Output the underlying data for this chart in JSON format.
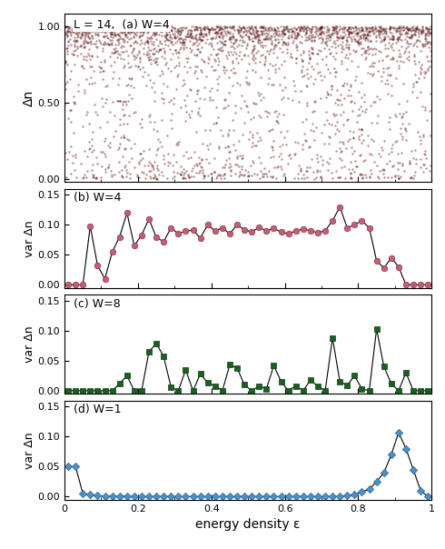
{
  "title_a": "L = 14,  (a) W=4",
  "label_b": "(b) W=4",
  "label_c": "(c) W=8",
  "label_d": "(d) W=1",
  "xlabel": "energy density ε",
  "ylabel_a": "Δn",
  "ylabel_bcd": "var Δn",
  "scatter_color": "#5a1010",
  "scatter_alpha": 0.45,
  "scatter_size": 3,
  "marker_color_b": "#c06070",
  "edge_color_b": "#903050",
  "marker_color_c": "#1a6020",
  "edge_color_c": "#0a3a10",
  "marker_color_d": "#5090c0",
  "edge_color_d": "#2060a0",
  "ylim_a": [
    -0.02,
    1.08
  ],
  "ylim_bcd": [
    -0.005,
    0.16
  ],
  "yticks_a": [
    0.0,
    0.5,
    1.0
  ],
  "yticks_bcd": [
    0.0,
    0.05,
    0.1,
    0.15
  ],
  "b_x": [
    0.01,
    0.03,
    0.05,
    0.07,
    0.09,
    0.11,
    0.13,
    0.15,
    0.17,
    0.19,
    0.21,
    0.23,
    0.25,
    0.27,
    0.29,
    0.31,
    0.33,
    0.35,
    0.37,
    0.39,
    0.41,
    0.43,
    0.45,
    0.47,
    0.49,
    0.51,
    0.53,
    0.55,
    0.57,
    0.59,
    0.61,
    0.63,
    0.65,
    0.67,
    0.69,
    0.71,
    0.73,
    0.75,
    0.77,
    0.79,
    0.81,
    0.83,
    0.85,
    0.87,
    0.89,
    0.91,
    0.93,
    0.95,
    0.97,
    0.99
  ],
  "b_y": [
    0.0,
    0.0,
    0.0,
    0.098,
    0.032,
    0.01,
    0.055,
    0.08,
    0.12,
    0.065,
    0.083,
    0.11,
    0.079,
    0.072,
    0.095,
    0.085,
    0.09,
    0.091,
    0.078,
    0.1,
    0.09,
    0.095,
    0.085,
    0.1,
    0.092,
    0.088,
    0.096,
    0.09,
    0.094,
    0.088,
    0.085,
    0.09,
    0.093,
    0.09,
    0.087,
    0.09,
    0.107,
    0.13,
    0.095,
    0.1,
    0.107,
    0.095,
    0.04,
    0.028,
    0.045,
    0.03,
    0.0,
    0.0,
    0.0,
    0.0
  ],
  "c_x": [
    0.01,
    0.03,
    0.05,
    0.07,
    0.09,
    0.11,
    0.13,
    0.15,
    0.17,
    0.19,
    0.21,
    0.23,
    0.25,
    0.27,
    0.29,
    0.31,
    0.33,
    0.35,
    0.37,
    0.39,
    0.41,
    0.43,
    0.45,
    0.47,
    0.49,
    0.51,
    0.53,
    0.55,
    0.57,
    0.59,
    0.61,
    0.63,
    0.65,
    0.67,
    0.69,
    0.71,
    0.73,
    0.75,
    0.77,
    0.79,
    0.81,
    0.83,
    0.85,
    0.87,
    0.89,
    0.91,
    0.93,
    0.95,
    0.97,
    0.99
  ],
  "c_y": [
    0.0,
    0.0,
    0.0,
    0.0,
    0.0,
    0.0,
    0.0,
    0.012,
    0.025,
    0.0,
    0.0,
    0.065,
    0.079,
    0.057,
    0.006,
    0.0,
    0.035,
    0.0,
    0.028,
    0.013,
    0.008,
    0.0,
    0.043,
    0.038,
    0.01,
    0.0,
    0.008,
    0.003,
    0.042,
    0.015,
    0.0,
    0.008,
    0.0,
    0.018,
    0.007,
    0.0,
    0.088,
    0.015,
    0.009,
    0.025,
    0.003,
    0.0,
    0.103,
    0.04,
    0.012,
    0.0,
    0.03,
    0.0,
    0.0,
    0.0
  ],
  "d_x": [
    0.01,
    0.03,
    0.05,
    0.07,
    0.09,
    0.11,
    0.13,
    0.15,
    0.17,
    0.19,
    0.21,
    0.23,
    0.25,
    0.27,
    0.29,
    0.31,
    0.33,
    0.35,
    0.37,
    0.39,
    0.41,
    0.43,
    0.45,
    0.47,
    0.49,
    0.51,
    0.53,
    0.55,
    0.57,
    0.59,
    0.61,
    0.63,
    0.65,
    0.67,
    0.69,
    0.71,
    0.73,
    0.75,
    0.77,
    0.79,
    0.81,
    0.83,
    0.85,
    0.87,
    0.89,
    0.91,
    0.93,
    0.95,
    0.97,
    0.99
  ],
  "d_y": [
    0.05,
    0.05,
    0.005,
    0.003,
    0.002,
    0.0,
    0.001,
    0.0,
    0.001,
    0.0,
    0.0,
    0.0,
    0.0,
    0.0,
    0.0,
    0.0,
    0.0,
    0.0,
    0.0,
    0.0,
    0.0,
    0.0,
    0.0,
    0.0,
    0.0,
    0.0,
    0.0,
    0.0,
    0.0,
    0.0,
    0.0,
    0.0,
    0.0,
    0.0,
    0.0,
    0.0,
    0.0,
    0.0,
    0.002,
    0.003,
    0.008,
    0.012,
    0.025,
    0.04,
    0.07,
    0.107,
    0.08,
    0.045,
    0.01,
    0.0
  ]
}
